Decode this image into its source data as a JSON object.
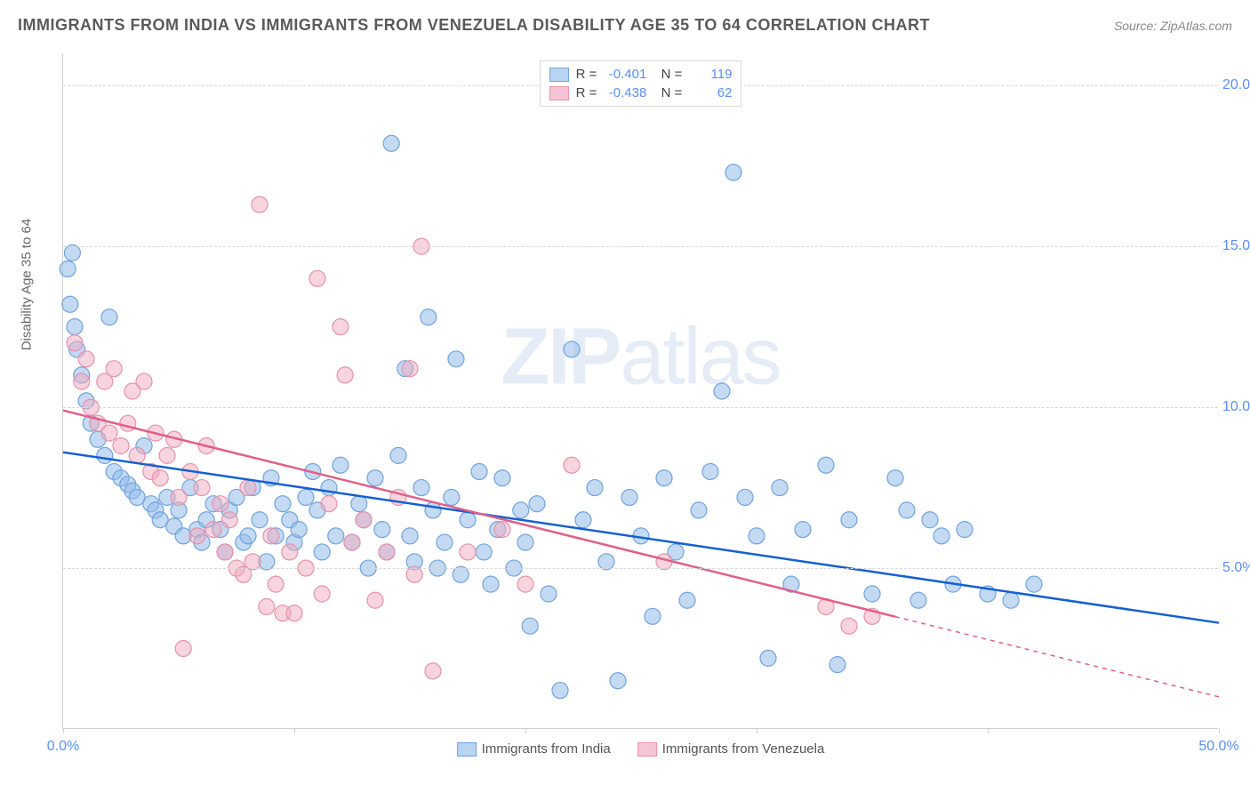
{
  "header": {
    "title": "IMMIGRANTS FROM INDIA VS IMMIGRANTS FROM VENEZUELA DISABILITY AGE 35 TO 64 CORRELATION CHART",
    "source": "Source: ZipAtlas.com"
  },
  "chart": {
    "type": "scatter",
    "watermark": "ZIPatlas",
    "y_axis_label": "Disability Age 35 to 64",
    "xlim": [
      0,
      50
    ],
    "ylim": [
      0,
      21
    ],
    "x_ticks": [
      0,
      10,
      20,
      30,
      40,
      50
    ],
    "x_tick_labels": [
      "0.0%",
      "",
      "",
      "",
      "",
      "50.0%"
    ],
    "y_gridlines": [
      5,
      10,
      15,
      20
    ],
    "y_tick_labels": [
      "5.0%",
      "10.0%",
      "15.0%",
      "20.0%"
    ],
    "background_color": "#ffffff",
    "grid_color": "#d8d8d8",
    "series": [
      {
        "name": "Immigrants from India",
        "fill_color": "rgba(148,187,233,0.55)",
        "stroke_color": "#6fa3e0",
        "line_color": "#1560d0",
        "swatch_fill": "#b8d4f0",
        "swatch_border": "#6fa3e0",
        "marker_radius": 9,
        "correlation": {
          "r": "-0.401",
          "n": "119"
        },
        "trend": {
          "x1": 0,
          "y1": 8.6,
          "x2": 50,
          "y2": 3.3,
          "dash_from_x": 50
        },
        "points": [
          [
            0.2,
            14.3
          ],
          [
            0.3,
            13.2
          ],
          [
            0.5,
            12.5
          ],
          [
            0.6,
            11.8
          ],
          [
            0.4,
            14.8
          ],
          [
            0.8,
            11.0
          ],
          [
            1.0,
            10.2
          ],
          [
            1.2,
            9.5
          ],
          [
            1.5,
            9.0
          ],
          [
            1.8,
            8.5
          ],
          [
            2.0,
            12.8
          ],
          [
            2.2,
            8.0
          ],
          [
            2.5,
            7.8
          ],
          [
            2.8,
            7.6
          ],
          [
            3.0,
            7.4
          ],
          [
            3.2,
            7.2
          ],
          [
            3.5,
            8.8
          ],
          [
            3.8,
            7.0
          ],
          [
            4.0,
            6.8
          ],
          [
            4.2,
            6.5
          ],
          [
            4.5,
            7.2
          ],
          [
            4.8,
            6.3
          ],
          [
            5.0,
            6.8
          ],
          [
            5.2,
            6.0
          ],
          [
            5.5,
            7.5
          ],
          [
            5.8,
            6.2
          ],
          [
            6.0,
            5.8
          ],
          [
            6.2,
            6.5
          ],
          [
            6.5,
            7.0
          ],
          [
            6.8,
            6.2
          ],
          [
            7.0,
            5.5
          ],
          [
            7.2,
            6.8
          ],
          [
            7.5,
            7.2
          ],
          [
            7.8,
            5.8
          ],
          [
            8.0,
            6.0
          ],
          [
            8.2,
            7.5
          ],
          [
            8.5,
            6.5
          ],
          [
            8.8,
            5.2
          ],
          [
            9.0,
            7.8
          ],
          [
            9.2,
            6.0
          ],
          [
            9.5,
            7.0
          ],
          [
            9.8,
            6.5
          ],
          [
            10.0,
            5.8
          ],
          [
            10.2,
            6.2
          ],
          [
            10.5,
            7.2
          ],
          [
            10.8,
            8.0
          ],
          [
            11.0,
            6.8
          ],
          [
            11.2,
            5.5
          ],
          [
            11.5,
            7.5
          ],
          [
            11.8,
            6.0
          ],
          [
            12.0,
            8.2
          ],
          [
            12.5,
            5.8
          ],
          [
            12.8,
            7.0
          ],
          [
            13.0,
            6.5
          ],
          [
            13.2,
            5.0
          ],
          [
            13.5,
            7.8
          ],
          [
            13.8,
            6.2
          ],
          [
            14.0,
            5.5
          ],
          [
            14.2,
            18.2
          ],
          [
            14.5,
            8.5
          ],
          [
            14.8,
            11.2
          ],
          [
            15.0,
            6.0
          ],
          [
            15.2,
            5.2
          ],
          [
            15.5,
            7.5
          ],
          [
            15.8,
            12.8
          ],
          [
            16.0,
            6.8
          ],
          [
            16.2,
            5.0
          ],
          [
            16.5,
            5.8
          ],
          [
            16.8,
            7.2
          ],
          [
            17.0,
            11.5
          ],
          [
            17.2,
            4.8
          ],
          [
            17.5,
            6.5
          ],
          [
            18.0,
            8.0
          ],
          [
            18.2,
            5.5
          ],
          [
            18.5,
            4.5
          ],
          [
            18.8,
            6.2
          ],
          [
            19.0,
            7.8
          ],
          [
            19.5,
            5.0
          ],
          [
            19.8,
            6.8
          ],
          [
            20.0,
            5.8
          ],
          [
            20.2,
            3.2
          ],
          [
            20.5,
            7.0
          ],
          [
            21.0,
            4.2
          ],
          [
            21.5,
            1.2
          ],
          [
            22.0,
            11.8
          ],
          [
            22.5,
            6.5
          ],
          [
            23.0,
            7.5
          ],
          [
            23.5,
            5.2
          ],
          [
            24.0,
            1.5
          ],
          [
            24.5,
            7.2
          ],
          [
            25.0,
            6.0
          ],
          [
            25.5,
            3.5
          ],
          [
            26.0,
            7.8
          ],
          [
            26.5,
            5.5
          ],
          [
            27.0,
            4.0
          ],
          [
            27.5,
            6.8
          ],
          [
            28.0,
            8.0
          ],
          [
            28.5,
            10.5
          ],
          [
            29.0,
            17.3
          ],
          [
            29.5,
            7.2
          ],
          [
            30.0,
            6.0
          ],
          [
            30.5,
            2.2
          ],
          [
            31.0,
            7.5
          ],
          [
            31.5,
            4.5
          ],
          [
            32.0,
            6.2
          ],
          [
            33.0,
            8.2
          ],
          [
            33.5,
            2.0
          ],
          [
            34.0,
            6.5
          ],
          [
            35.0,
            4.2
          ],
          [
            36.0,
            7.8
          ],
          [
            36.5,
            6.8
          ],
          [
            37.0,
            4.0
          ],
          [
            37.5,
            6.5
          ],
          [
            38.0,
            6.0
          ],
          [
            38.5,
            4.5
          ],
          [
            39.0,
            6.2
          ],
          [
            40.0,
            4.2
          ],
          [
            41.0,
            4.0
          ],
          [
            42.0,
            4.5
          ]
        ]
      },
      {
        "name": "Immigrants from Venezuela",
        "fill_color": "rgba(240,170,190,0.5)",
        "stroke_color": "#e891ab",
        "line_color": "#e06088",
        "swatch_fill": "#f5c5d5",
        "swatch_border": "#e891ab",
        "marker_radius": 9,
        "correlation": {
          "r": "-0.438",
          "n": "62"
        },
        "trend": {
          "x1": 0,
          "y1": 9.9,
          "x2": 50,
          "y2": 1.0,
          "dash_from_x": 36
        },
        "points": [
          [
            0.5,
            12.0
          ],
          [
            0.8,
            10.8
          ],
          [
            1.0,
            11.5
          ],
          [
            1.2,
            10.0
          ],
          [
            1.5,
            9.5
          ],
          [
            1.8,
            10.8
          ],
          [
            2.0,
            9.2
          ],
          [
            2.2,
            11.2
          ],
          [
            2.5,
            8.8
          ],
          [
            2.8,
            9.5
          ],
          [
            3.0,
            10.5
          ],
          [
            3.2,
            8.5
          ],
          [
            3.5,
            10.8
          ],
          [
            3.8,
            8.0
          ],
          [
            4.0,
            9.2
          ],
          [
            4.2,
            7.8
          ],
          [
            4.5,
            8.5
          ],
          [
            4.8,
            9.0
          ],
          [
            5.0,
            7.2
          ],
          [
            5.2,
            2.5
          ],
          [
            5.5,
            8.0
          ],
          [
            5.8,
            6.0
          ],
          [
            6.0,
            7.5
          ],
          [
            6.2,
            8.8
          ],
          [
            6.5,
            6.2
          ],
          [
            6.8,
            7.0
          ],
          [
            7.0,
            5.5
          ],
          [
            7.2,
            6.5
          ],
          [
            7.5,
            5.0
          ],
          [
            7.8,
            4.8
          ],
          [
            8.0,
            7.5
          ],
          [
            8.2,
            5.2
          ],
          [
            8.5,
            16.3
          ],
          [
            8.8,
            3.8
          ],
          [
            9.0,
            6.0
          ],
          [
            9.2,
            4.5
          ],
          [
            9.5,
            3.6
          ],
          [
            9.8,
            5.5
          ],
          [
            10.0,
            3.6
          ],
          [
            10.5,
            5.0
          ],
          [
            11.0,
            14.0
          ],
          [
            11.2,
            4.2
          ],
          [
            11.5,
            7.0
          ],
          [
            12.0,
            12.5
          ],
          [
            12.2,
            11.0
          ],
          [
            12.5,
            5.8
          ],
          [
            13.0,
            6.5
          ],
          [
            13.5,
            4.0
          ],
          [
            14.0,
            5.5
          ],
          [
            14.5,
            7.2
          ],
          [
            15.0,
            11.2
          ],
          [
            15.2,
            4.8
          ],
          [
            15.5,
            15.0
          ],
          [
            16.0,
            1.8
          ],
          [
            17.5,
            5.5
          ],
          [
            19.0,
            6.2
          ],
          [
            20.0,
            4.5
          ],
          [
            22.0,
            8.2
          ],
          [
            26.0,
            5.2
          ],
          [
            33.0,
            3.8
          ],
          [
            34.0,
            3.2
          ],
          [
            35.0,
            3.5
          ]
        ]
      }
    ],
    "bottom_legend": [
      {
        "label": "Immigrants from India",
        "swatch_fill": "#b8d4f0",
        "swatch_border": "#6fa3e0"
      },
      {
        "label": "Immigrants from Venezuela",
        "swatch_fill": "#f5c5d5",
        "swatch_border": "#e891ab"
      }
    ]
  }
}
